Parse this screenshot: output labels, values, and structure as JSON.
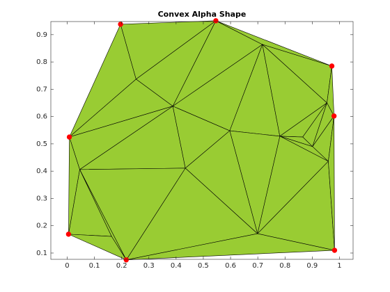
{
  "chart_data": {
    "type": "triangulation",
    "title": "Convex Alpha Shape",
    "x": [
      0.196,
      0.546,
      0.972,
      0.98,
      0.982,
      0.217,
      0.005,
      0.008,
      0.253,
      0.388,
      0.717,
      0.597,
      0.781,
      0.954,
      0.865,
      0.901,
      0.959,
      0.434,
      0.046,
      0.163,
      0.699
    ],
    "y": [
      0.938,
      0.951,
      0.785,
      0.602,
      0.11,
      0.075,
      0.169,
      0.525,
      0.737,
      0.638,
      0.864,
      0.548,
      0.528,
      0.65,
      0.525,
      0.49,
      0.436,
      0.411,
      0.406,
      0.161,
      0.171
    ],
    "triangles": [
      [
        0,
        7,
        8
      ],
      [
        0,
        8,
        1
      ],
      [
        8,
        1,
        9
      ],
      [
        1,
        9,
        10
      ],
      [
        1,
        10,
        2
      ],
      [
        10,
        2,
        13
      ],
      [
        2,
        13,
        3
      ],
      [
        7,
        8,
        9
      ],
      [
        7,
        9,
        18
      ],
      [
        18,
        9,
        17
      ],
      [
        9,
        10,
        11
      ],
      [
        9,
        11,
        17
      ],
      [
        10,
        11,
        12
      ],
      [
        10,
        12,
        13
      ],
      [
        12,
        13,
        14
      ],
      [
        13,
        14,
        15
      ],
      [
        13,
        15,
        3
      ],
      [
        3,
        15,
        16
      ],
      [
        12,
        14,
        15
      ],
      [
        12,
        15,
        16
      ],
      [
        12,
        16,
        20
      ],
      [
        11,
        12,
        20
      ],
      [
        11,
        20,
        17
      ],
      [
        17,
        20,
        5
      ],
      [
        20,
        16,
        4
      ],
      [
        16,
        3,
        4
      ],
      [
        20,
        4,
        5
      ],
      [
        18,
        17,
        5
      ],
      [
        18,
        5,
        19
      ],
      [
        18,
        19,
        6
      ],
      [
        19,
        6,
        5
      ],
      [
        7,
        18,
        6
      ]
    ],
    "boundary": [
      0,
      1,
      2,
      3,
      4,
      5,
      6,
      7
    ],
    "face_color": "#99cc33",
    "edge_color": "#000000",
    "marker_color": "#ff0000",
    "xlim": [
      -0.06,
      1.05
    ],
    "ylim": [
      0.077,
      0.948
    ],
    "xticks": [
      0,
      0.1,
      0.2,
      0.3,
      0.4,
      0.5,
      0.6,
      0.7,
      0.8,
      0.9,
      1
    ],
    "yticks": [
      0.1,
      0.2,
      0.3,
      0.4,
      0.5,
      0.6,
      0.7,
      0.8,
      0.9
    ]
  }
}
